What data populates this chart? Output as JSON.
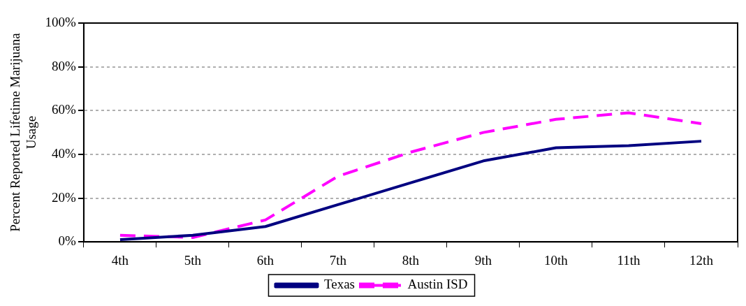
{
  "chart_data": {
    "type": "line",
    "ylabel": "Percent Reported Lifetime Marijuana Usage",
    "categories": [
      "4th",
      "5th",
      "6th",
      "7th",
      "8th",
      "9th",
      "10th",
      "11th",
      "12th"
    ],
    "series": [
      {
        "name": "Texas",
        "color": "#000080",
        "values": [
          1,
          3,
          7,
          17,
          27,
          37,
          43,
          44,
          46
        ],
        "line_style": "solid"
      },
      {
        "name": "Austin ISD",
        "color": "#ff00ff",
        "values": [
          3,
          2,
          10,
          30,
          41,
          50,
          56,
          59,
          54
        ],
        "line_style": "dashed"
      }
    ],
    "ylim": [
      0,
      100
    ],
    "yticks": [
      {
        "value": 0,
        "label": "0%"
      },
      {
        "value": 20,
        "label": "20%"
      },
      {
        "value": 40,
        "label": "40%"
      },
      {
        "value": 60,
        "label": "60%"
      },
      {
        "value": 80,
        "label": "80%"
      },
      {
        "value": 100,
        "label": "100%"
      }
    ],
    "grid": "y",
    "legend": "bottom",
    "marker": "none"
  }
}
